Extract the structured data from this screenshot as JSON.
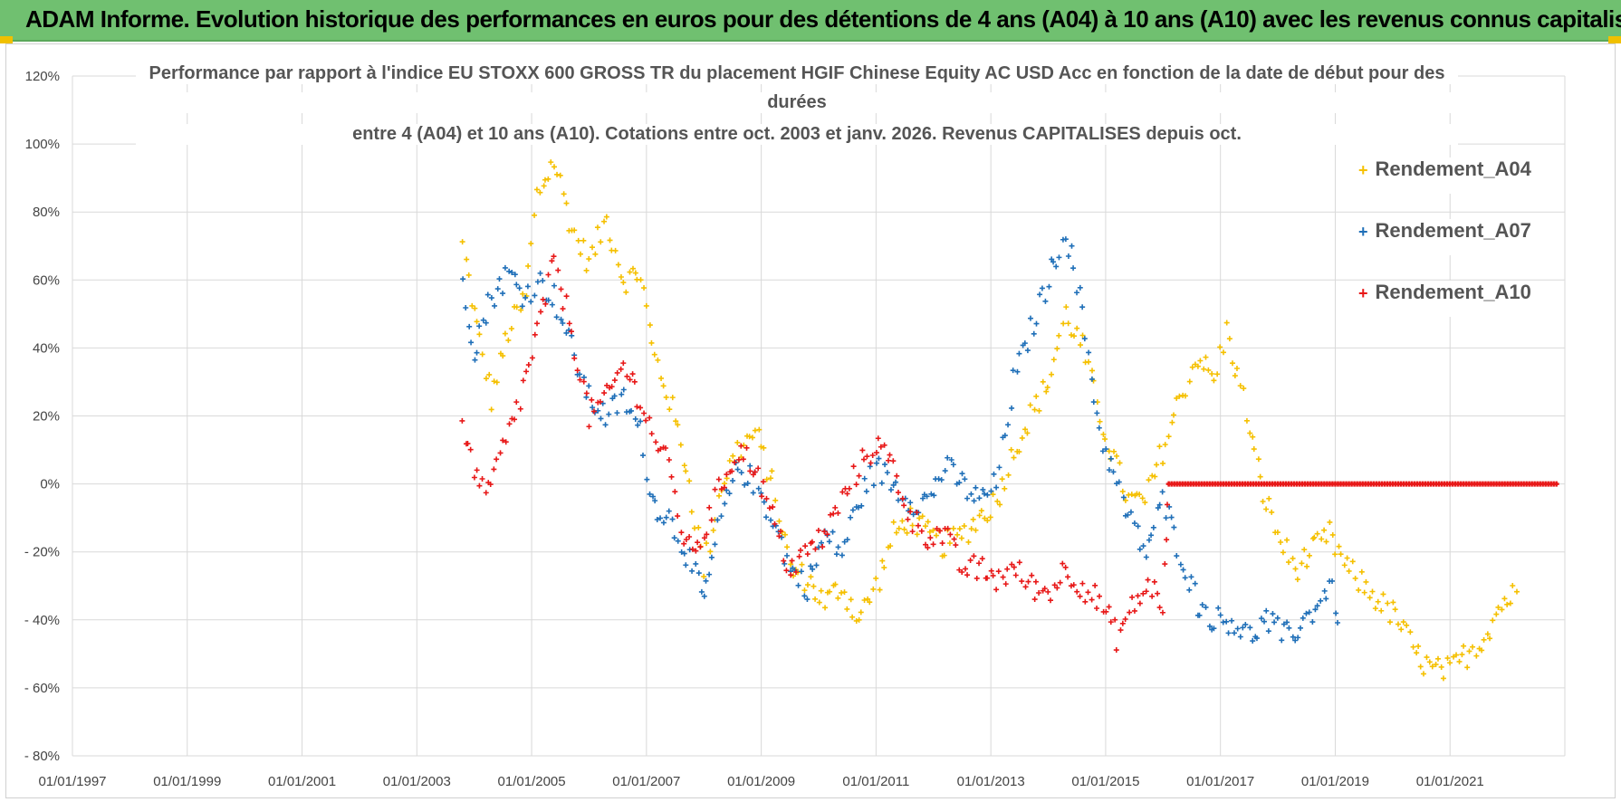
{
  "banner": {
    "title": "ADAM Informe. Evolution historique des performances en euros pour des détentions de 4 ans (A04) à 10 ans (A10) avec les revenus connus capitalisés"
  },
  "chart_data": {
    "type": "scatter",
    "title_lines": [
      "Performance par rapport à l'indice EU STOXX 600 GROSS TR  du placement HGIF Chinese Equity AC USD Acc en fonction de la date de début pour des",
      "durées",
      "entre 4 (A04) et 10 ans (A10). Cotations entre oct. 2003 et janv. 2026. Revenus CAPITALISES depuis oct."
    ],
    "x_axis": {
      "type": "date",
      "range": [
        "1997-01-01",
        "2022-12-31"
      ],
      "tick_labels": [
        "01/01/1997",
        "01/01/1999",
        "01/01/2001",
        "01/01/2003",
        "01/01/2005",
        "01/01/2007",
        "01/01/2009",
        "01/01/2011",
        "01/01/2013",
        "01/01/2015",
        "01/01/2017",
        "01/01/2019",
        "01/01/2021"
      ]
    },
    "y_axis": {
      "range": [
        -80,
        120
      ],
      "unit": "%",
      "tick_labels": [
        "120%",
        "100%",
        "80%",
        "60%",
        "40%",
        "20%",
        "0%",
        "- 20%",
        "- 40%",
        "- 60%",
        "- 80%"
      ]
    },
    "legend_position": "top-right",
    "series": [
      {
        "name": "Rendement_A04",
        "color": "#f5c000",
        "marker": "+",
        "points": [
          [
            2003.8,
            70
          ],
          [
            2004.0,
            50
          ],
          [
            2004.3,
            25
          ],
          [
            2004.6,
            45
          ],
          [
            2004.9,
            55
          ],
          [
            2005.1,
            85
          ],
          [
            2005.4,
            95
          ],
          [
            2005.7,
            75
          ],
          [
            2006.0,
            65
          ],
          [
            2006.3,
            78
          ],
          [
            2006.6,
            60
          ],
          [
            2006.9,
            62
          ],
          [
            2007.1,
            40
          ],
          [
            2007.4,
            25
          ],
          [
            2007.7,
            5
          ],
          [
            2008.0,
            -25
          ],
          [
            2008.3,
            0
          ],
          [
            2008.6,
            10
          ],
          [
            2008.9,
            15
          ],
          [
            2009.2,
            0
          ],
          [
            2009.5,
            -25
          ],
          [
            2009.8,
            -28
          ],
          [
            2010.1,
            -35
          ],
          [
            2010.4,
            -30
          ],
          [
            2010.7,
            -40
          ],
          [
            2011.0,
            -30
          ],
          [
            2011.3,
            -15
          ],
          [
            2011.6,
            -10
          ],
          [
            2011.9,
            -15
          ],
          [
            2012.2,
            -18
          ],
          [
            2012.5,
            -15
          ],
          [
            2012.8,
            -10
          ],
          [
            2013.1,
            -5
          ],
          [
            2013.4,
            10
          ],
          [
            2013.7,
            20
          ],
          [
            2014.0,
            30
          ],
          [
            2014.3,
            50
          ],
          [
            2014.6,
            40
          ],
          [
            2014.9,
            20
          ],
          [
            2015.1,
            10
          ],
          [
            2015.4,
            -5
          ],
          [
            2015.7,
            -5
          ],
          [
            2016.0,
            10
          ],
          [
            2016.3,
            25
          ],
          [
            2016.6,
            38
          ],
          [
            2016.9,
            30
          ],
          [
            2017.1,
            45
          ],
          [
            2017.4,
            25
          ],
          [
            2017.7,
            0
          ],
          [
            2018.0,
            -15
          ],
          [
            2018.3,
            -25
          ],
          [
            2018.6,
            -20
          ],
          [
            2018.9,
            -15
          ],
          [
            2019.2,
            -25
          ],
          [
            2019.5,
            -30
          ],
          [
            2019.8,
            -35
          ],
          [
            2020.1,
            -40
          ],
          [
            2020.4,
            -50
          ],
          [
            2020.7,
            -55
          ],
          [
            2021.0,
            -55
          ],
          [
            2021.3,
            -50
          ],
          [
            2021.6,
            -45
          ],
          [
            2021.9,
            -35
          ],
          [
            2022.2,
            -32
          ]
        ]
      },
      {
        "name": "Rendement_A07",
        "color": "#1f6fb8",
        "marker": "+",
        "points": [
          [
            2003.8,
            60
          ],
          [
            2004.0,
            40
          ],
          [
            2004.3,
            55
          ],
          [
            2004.6,
            62
          ],
          [
            2004.9,
            55
          ],
          [
            2005.1,
            60
          ],
          [
            2005.4,
            55
          ],
          [
            2005.7,
            40
          ],
          [
            2006.0,
            25
          ],
          [
            2006.3,
            20
          ],
          [
            2006.6,
            25
          ],
          [
            2006.9,
            15
          ],
          [
            2007.1,
            -5
          ],
          [
            2007.4,
            -10
          ],
          [
            2007.7,
            -20
          ],
          [
            2008.0,
            -35
          ],
          [
            2008.3,
            -10
          ],
          [
            2008.6,
            5
          ],
          [
            2008.9,
            0
          ],
          [
            2009.2,
            -10
          ],
          [
            2009.5,
            -25
          ],
          [
            2009.8,
            -30
          ],
          [
            2010.1,
            -15
          ],
          [
            2010.4,
            -20
          ],
          [
            2010.7,
            -5
          ],
          [
            2011.0,
            5
          ],
          [
            2011.3,
            0
          ],
          [
            2011.6,
            -5
          ],
          [
            2011.9,
            -5
          ],
          [
            2012.2,
            5
          ],
          [
            2012.5,
            0
          ],
          [
            2012.8,
            -5
          ],
          [
            2013.1,
            0
          ],
          [
            2013.4,
            30
          ],
          [
            2013.7,
            45
          ],
          [
            2014.0,
            60
          ],
          [
            2014.3,
            75
          ],
          [
            2014.6,
            50
          ],
          [
            2014.9,
            15
          ],
          [
            2015.1,
            5
          ],
          [
            2015.4,
            -10
          ],
          [
            2015.7,
            -20
          ],
          [
            2016.0,
            -5
          ],
          [
            2016.3,
            -20
          ],
          [
            2016.6,
            -35
          ],
          [
            2016.9,
            -40
          ],
          [
            2017.2,
            -40
          ],
          [
            2017.5,
            -45
          ],
          [
            2017.8,
            -40
          ],
          [
            2018.1,
            -45
          ],
          [
            2018.4,
            -42
          ],
          [
            2018.7,
            -35
          ],
          [
            2018.9,
            -30
          ],
          [
            2019.1,
            -40
          ]
        ]
      },
      {
        "name": "Rendement_A10",
        "color": "#e81818",
        "marker": "+",
        "points": [
          [
            2003.8,
            15
          ],
          [
            2004.0,
            5
          ],
          [
            2004.2,
            -5
          ],
          [
            2004.5,
            10
          ],
          [
            2004.8,
            25
          ],
          [
            2005.1,
            45
          ],
          [
            2005.4,
            65
          ],
          [
            2005.7,
            45
          ],
          [
            2006.0,
            20
          ],
          [
            2006.3,
            25
          ],
          [
            2006.6,
            35
          ],
          [
            2006.9,
            25
          ],
          [
            2007.1,
            15
          ],
          [
            2007.4,
            5
          ],
          [
            2007.7,
            -20
          ],
          [
            2008.0,
            -15
          ],
          [
            2008.3,
            0
          ],
          [
            2008.6,
            10
          ],
          [
            2008.9,
            5
          ],
          [
            2009.2,
            -10
          ],
          [
            2009.5,
            -25
          ],
          [
            2009.8,
            -20
          ],
          [
            2010.1,
            -15
          ],
          [
            2010.4,
            -5
          ],
          [
            2010.7,
            5
          ],
          [
            2011.0,
            12
          ],
          [
            2011.3,
            5
          ],
          [
            2011.6,
            -10
          ],
          [
            2011.9,
            -15
          ],
          [
            2012.2,
            -15
          ],
          [
            2012.5,
            -25
          ],
          [
            2012.8,
            -25
          ],
          [
            2013.1,
            -28
          ],
          [
            2013.4,
            -25
          ],
          [
            2013.7,
            -30
          ],
          [
            2014.0,
            -32
          ],
          [
            2014.3,
            -25
          ],
          [
            2014.6,
            -30
          ],
          [
            2014.9,
            -35
          ],
          [
            2015.2,
            -45
          ],
          [
            2015.5,
            -35
          ],
          [
            2015.8,
            -30
          ],
          [
            2016.0,
            -35
          ],
          [
            2016.1,
            0
          ],
          [
            2017.0,
            0
          ],
          [
            2018.0,
            0
          ],
          [
            2019.0,
            0
          ],
          [
            2020.0,
            0
          ],
          [
            2021.0,
            0
          ],
          [
            2022.0,
            0
          ],
          [
            2022.9,
            0
          ]
        ]
      }
    ]
  }
}
